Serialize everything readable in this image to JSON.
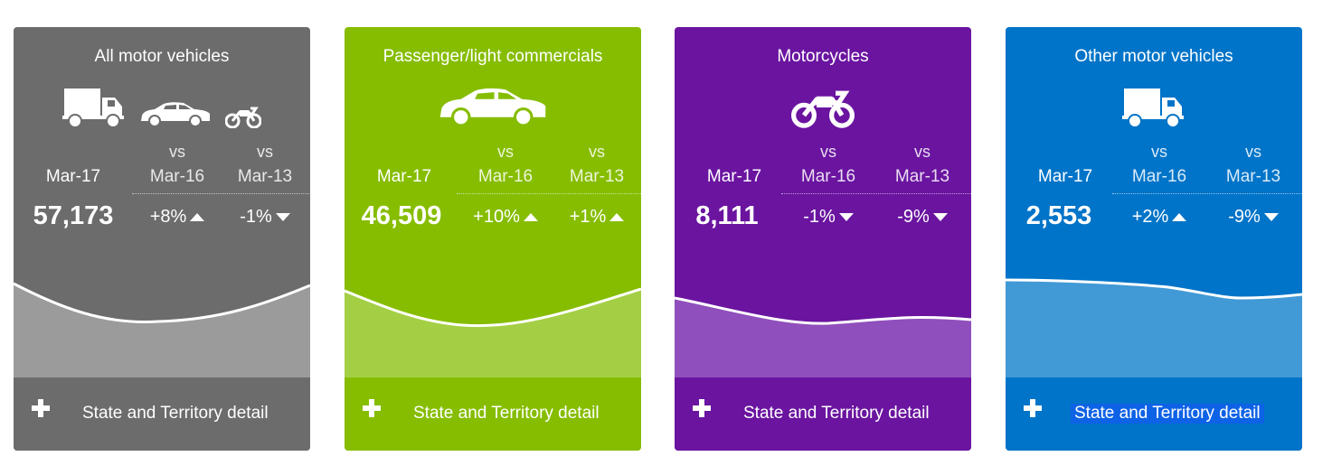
{
  "cards": [
    {
      "title": "All motor vehicles",
      "icons": [
        "truck-icon",
        "car-icon",
        "motorcycle-icon"
      ],
      "current_label": "Mar-17",
      "cmp1_vs": "vs",
      "cmp1_label": "Mar-16",
      "cmp2_vs": "vs",
      "cmp2_label": "Mar-13",
      "value": "57,173",
      "cmp1_change": "+8%",
      "cmp1_dir": "up",
      "cmp2_change": "-1%",
      "cmp2_dir": "down",
      "footer_label": "State and Territory detail",
      "colors": {
        "bg": "#6c6c6c",
        "area": "#9b9b9b"
      }
    },
    {
      "title": "Passenger/light commercials",
      "icons": [
        "car-icon"
      ],
      "current_label": "Mar-17",
      "cmp1_vs": "vs",
      "cmp1_label": "Mar-16",
      "cmp2_vs": "vs",
      "cmp2_label": "Mar-13",
      "value": "46,509",
      "cmp1_change": "+10%",
      "cmp1_dir": "up",
      "cmp2_change": "+1%",
      "cmp2_dir": "up",
      "footer_label": "State and Territory detail",
      "colors": {
        "bg": "#86bd00",
        "area": "#a4cf45"
      }
    },
    {
      "title": "Motorcycles",
      "icons": [
        "motorcycle-icon"
      ],
      "current_label": "Mar-17",
      "cmp1_vs": "vs",
      "cmp1_label": "Mar-16",
      "cmp2_vs": "vs",
      "cmp2_label": "Mar-13",
      "value": "8,111",
      "cmp1_change": "-1%",
      "cmp1_dir": "down",
      "cmp2_change": "-9%",
      "cmp2_dir": "down",
      "footer_label": "State and Territory detail",
      "colors": {
        "bg": "#6a14a0",
        "area": "#8f4fbc"
      }
    },
    {
      "title": "Other motor vehicles",
      "icons": [
        "truck-icon"
      ],
      "current_label": "Mar-17",
      "cmp1_vs": "vs",
      "cmp1_label": "Mar-16",
      "cmp2_vs": "vs",
      "cmp2_label": "Mar-13",
      "value": "2,553",
      "cmp1_change": "+2%",
      "cmp1_dir": "up",
      "cmp2_change": "-9%",
      "cmp2_dir": "down",
      "footer_label": "State and Territory detail",
      "colors": {
        "bg": "#0074c8",
        "area": "#4199d6"
      }
    }
  ]
}
